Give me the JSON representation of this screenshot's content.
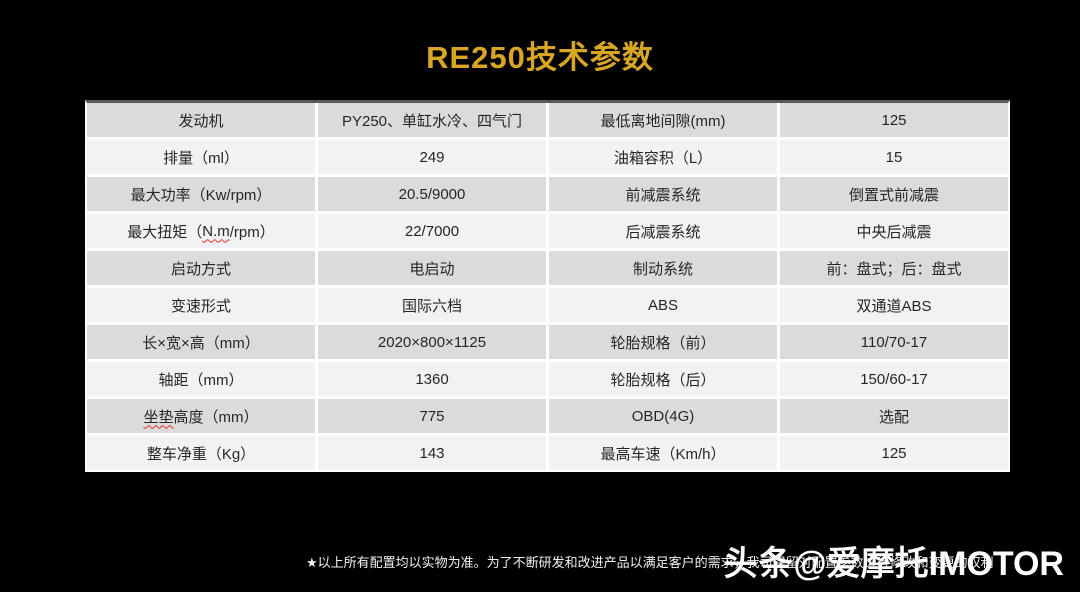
{
  "title": "RE250技术参数",
  "colors": {
    "background": "#000000",
    "title_gold": "#d8a623",
    "row_gray": "#dbdbdb",
    "row_light": "#f2f2f2",
    "cell_text": "#262626",
    "spellcheck_underline_red": "#e03030"
  },
  "table": {
    "rows": [
      {
        "c0": "发动机",
        "c1": "PY250、单缸水冷、四气门",
        "c2": "最低离地间隙(mm)",
        "c3": "125"
      },
      {
        "c0": "排量（ml）",
        "c1": "249",
        "c2": "油箱容积（L）",
        "c3": "15"
      },
      {
        "c0": "最大功率（Kw/rpm）",
        "c1": "20.5/9000",
        "c2": "前减震系统",
        "c3": "倒置式前减震"
      },
      {
        "c0_pre": "最大扭矩（",
        "c0_wavy": "N.m",
        "c0_post": "/rpm）",
        "c1": "22/7000",
        "c2": "后减震系统",
        "c3": "中央后减震"
      },
      {
        "c0": "启动方式",
        "c1": "电启动",
        "c2": "制动系统",
        "c3": "前：盘式；后：盘式"
      },
      {
        "c0": "变速形式",
        "c1": "国际六档",
        "c2": "ABS",
        "c3": "双通道ABS"
      },
      {
        "c0": "长×宽×高（mm）",
        "c1": "2020×800×1125",
        "c2": "轮胎规格（前）",
        "c3": "110/70-17"
      },
      {
        "c0": "轴距（mm）",
        "c1": "1360",
        "c2": "轮胎规格（后）",
        "c3": "150/60-17"
      },
      {
        "c0_wavy": "坐垫",
        "c0_post": "高度（mm）",
        "c1": "775",
        "c2": "OBD(4G)",
        "c3": "选配"
      },
      {
        "c0": "整车净重（Kg）",
        "c1": "143",
        "c2": "最高车速（Km/h）",
        "c3": "125"
      }
    ]
  },
  "footnote": {
    "text": "★以上所有配置均以实物为准。为了不断研发和改进产品以满足客户的需求，我司保留对配置参数进行修改和变更的权利"
  },
  "watermark": {
    "logo": "头条",
    "handle": "@爱摩托IMOTOR"
  }
}
